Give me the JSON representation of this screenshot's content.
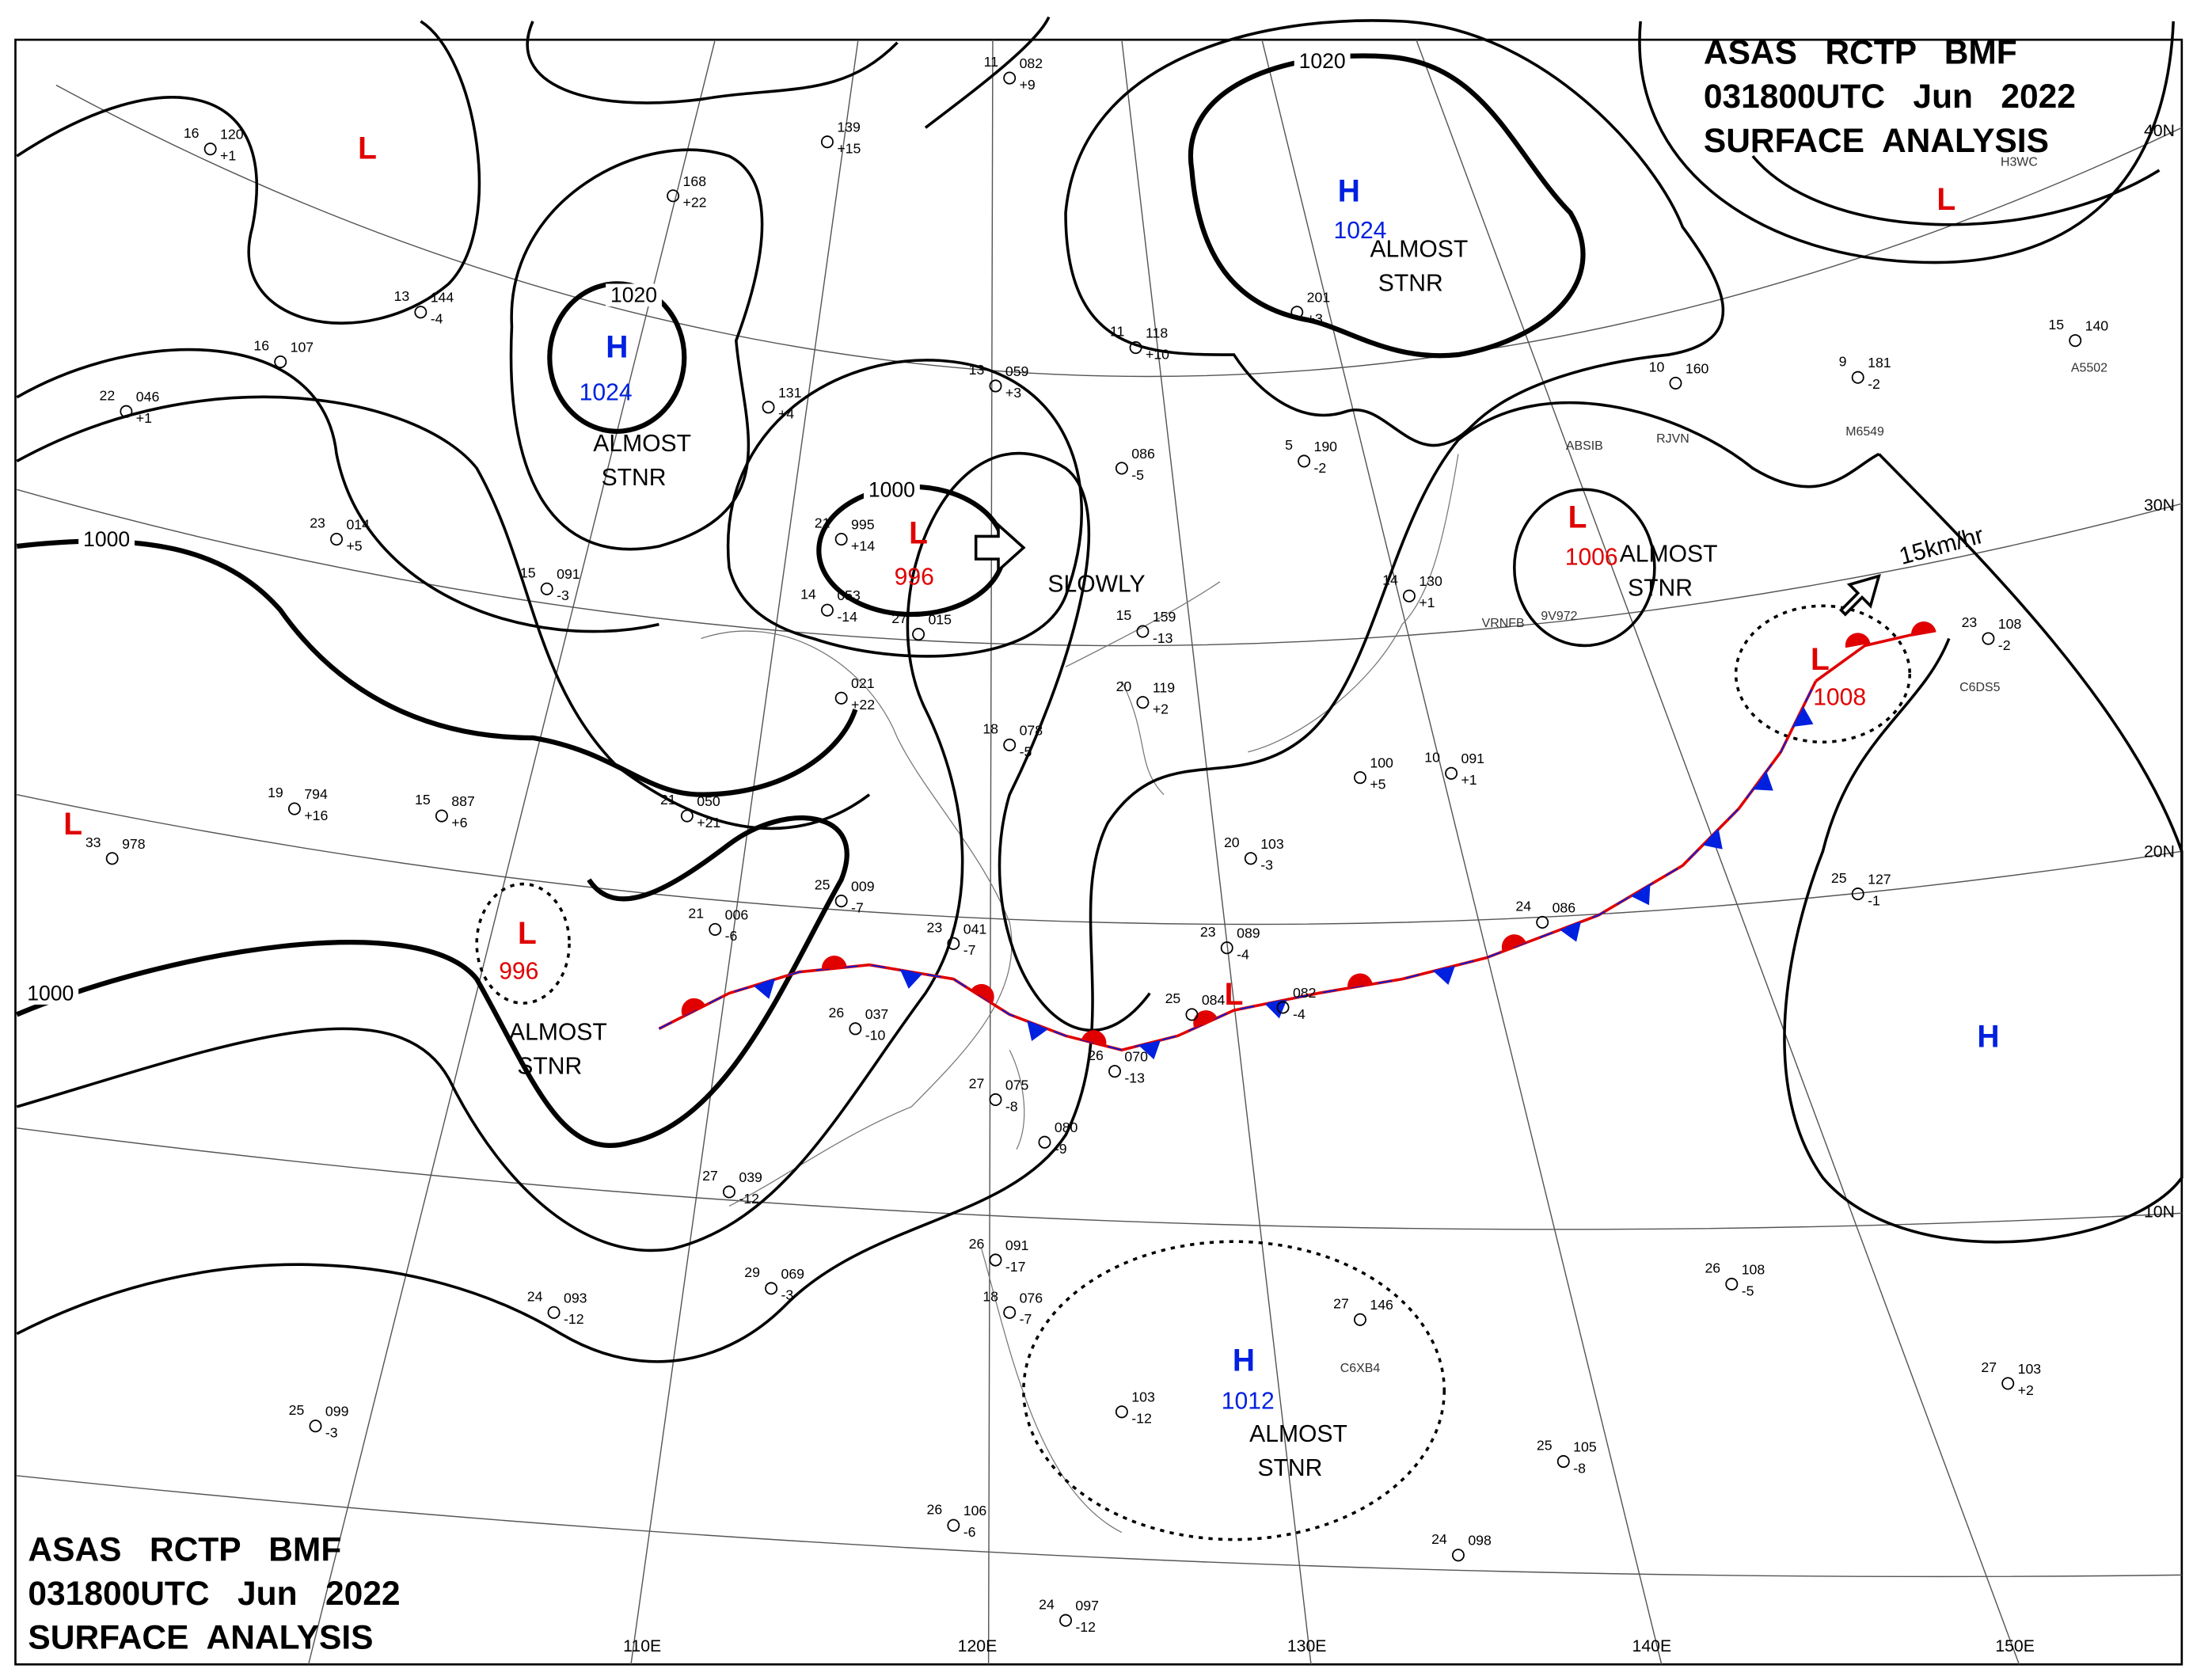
{
  "header": {
    "lines": [
      "ASAS   RCTP   BMF",
      "031800UTC   Jun   2022",
      "SURFACE  ANALYSIS"
    ]
  },
  "centers": [
    {
      "symbol": "L"
    },
    {
      "symbol": "H",
      "pressure": "1024",
      "note": [
        "ALMOST",
        "STNR"
      ]
    },
    {
      "symbol": "L",
      "pressure": "996"
    },
    {
      "symbol": "H",
      "pressure": "1024",
      "note": [
        "ALMOST",
        "STNR"
      ]
    },
    {
      "symbol": "L"
    },
    {
      "symbol": "L",
      "pressure": "1006",
      "note": [
        "ALMOST",
        "STNR"
      ]
    },
    {
      "symbol": "L",
      "pressure": "1008"
    },
    {
      "symbol": "L"
    },
    {
      "symbol": "L",
      "pressure": "996",
      "note": [
        "ALMOST",
        "STNR"
      ]
    },
    {
      "symbol": "L"
    },
    {
      "symbol": "H"
    },
    {
      "symbol": "H",
      "pressure": "1012",
      "note": [
        "ALMOST",
        "STNR"
      ]
    }
  ],
  "isobar_labels": [
    "1020",
    "1000",
    "1020",
    "1000",
    "1000"
  ],
  "motion": [
    "SLOWLY",
    "15km/hr"
  ],
  "latitudes": [
    "40N",
    "30N",
    "20N",
    "10N"
  ],
  "longitudes": [
    "110E",
    "120E",
    "130E",
    "140E",
    "150E"
  ],
  "stations": [
    {
      "temp": "16",
      "pressure": "120",
      "tendency": "+1"
    },
    {
      "temp": "13",
      "pressure": "144",
      "tendency": "-4"
    },
    {
      "temp": "23",
      "pressure": "014",
      "tendency": "+5"
    },
    {
      "temp": "15",
      "pressure": "091",
      "tendency": "-3"
    },
    {
      "temp": "19",
      "pressure": "794",
      "tendency": "+16"
    },
    {
      "temp": "15",
      "pressure": "887",
      "tendency": "+6"
    },
    {
      "temp": "33",
      "pressure": "978"
    },
    {
      "temp": "21",
      "pressure": "006",
      "tendency": "-6"
    },
    {
      "temp": "25",
      "pressure": "009",
      "tendency": "-7"
    },
    {
      "temp": "23",
      "pressure": "041",
      "tendency": "-7"
    },
    {
      "temp": "26",
      "pressure": "037",
      "tendency": "-10"
    },
    {
      "temp": "14",
      "pressure": "053",
      "tendency": "-14"
    },
    {
      "temp": "21",
      "pressure": "995",
      "tendency": "+14"
    },
    {
      "temp": "27",
      "pressure": "015"
    },
    {
      "pressure": "021",
      "tendency": "+22"
    },
    {
      "temp": "21",
      "pressure": "050",
      "tendency": "+21"
    },
    {
      "temp": "11",
      "pressure": "082",
      "tendency": "+9"
    },
    {
      "temp": "13",
      "pressure": "059",
      "tendency": "+3"
    },
    {
      "temp": "11",
      "pressure": "118",
      "tendency": "+10"
    },
    {
      "pressure": "086",
      "tendency": "-5"
    },
    {
      "temp": "15",
      "pressure": "159",
      "tendency": "-13"
    },
    {
      "temp": "20",
      "pressure": "119",
      "tendency": "+2"
    },
    {
      "temp": "18",
      "pressure": "078",
      "tendency": "-5"
    },
    {
      "temp": "23",
      "pressure": "089",
      "tendency": "-4"
    },
    {
      "temp": "25",
      "pressure": "084"
    },
    {
      "pressure": "082",
      "tendency": "-4"
    },
    {
      "temp": "26",
      "pressure": "070",
      "tendency": "-13"
    },
    {
      "temp": "27",
      "pressure": "075",
      "tendency": "-8"
    },
    {
      "pressure": "080",
      "tendency": "-9"
    },
    {
      "temp": "24",
      "pressure": "086"
    },
    {
      "temp": "14",
      "pressure": "130",
      "tendency": "+1"
    },
    {
      "temp": "10",
      "pressure": "091",
      "tendency": "+1"
    },
    {
      "pressure": "100",
      "tendency": "+5"
    },
    {
      "temp": "20",
      "pressure": "103",
      "tendency": "-3"
    },
    {
      "temp": "10",
      "pressure": "160"
    },
    {
      "temp": "9",
      "pressure": "181",
      "tendency": "-2"
    },
    {
      "temp": "15",
      "pressure": "140"
    },
    {
      "temp": "23",
      "pressure": "108",
      "tendency": "-2"
    },
    {
      "temp": "25",
      "pressure": "127",
      "tendency": "-1"
    },
    {
      "temp": "26",
      "pressure": "108",
      "tendency": "-5"
    },
    {
      "temp": "27",
      "pressure": "103",
      "tendency": "+2"
    },
    {
      "temp": "25",
      "pressure": "105",
      "tendency": "-8"
    },
    {
      "temp": "24",
      "pressure": "098"
    },
    {
      "temp": "27",
      "pressure": "146"
    },
    {
      "temp": "26",
      "pressure": "091",
      "tendency": "-17"
    },
    {
      "temp": "18",
      "pressure": "076",
      "tendency": "-7"
    },
    {
      "temp": "24",
      "pressure": "093",
      "tendency": "-12"
    },
    {
      "temp": "25",
      "pressure": "099",
      "tendency": "-3"
    },
    {
      "temp": "29",
      "pressure": "069",
      "tendency": "-3"
    },
    {
      "temp": "27",
      "pressure": "039",
      "tendency": "-12"
    },
    {
      "temp": "26",
      "pressure": "106",
      "tendency": "-6"
    },
    {
      "temp": "24",
      "pressure": "097",
      "tendency": "-12"
    },
    {
      "pressure": "103",
      "tendency": "-12"
    },
    {
      "temp": "5",
      "pressure": "190",
      "tendency": "-2"
    },
    {
      "pressure": "201",
      "tendency": "+3"
    },
    {
      "pressure": "168",
      "tendency": "+22"
    },
    {
      "pressure": "139",
      "tendency": "+15"
    },
    {
      "pressure": "131",
      "tendency": "+4"
    },
    {
      "temp": "16",
      "pressure": "107"
    },
    {
      "temp": "22",
      "pressure": "046",
      "tendency": "+1"
    }
  ],
  "ships": [
    "H3WC",
    "A5502",
    "M6549",
    "ABSIB",
    "RJVN",
    "VRNFB",
    "9V972",
    "C6DS5",
    "C6XB4"
  ]
}
